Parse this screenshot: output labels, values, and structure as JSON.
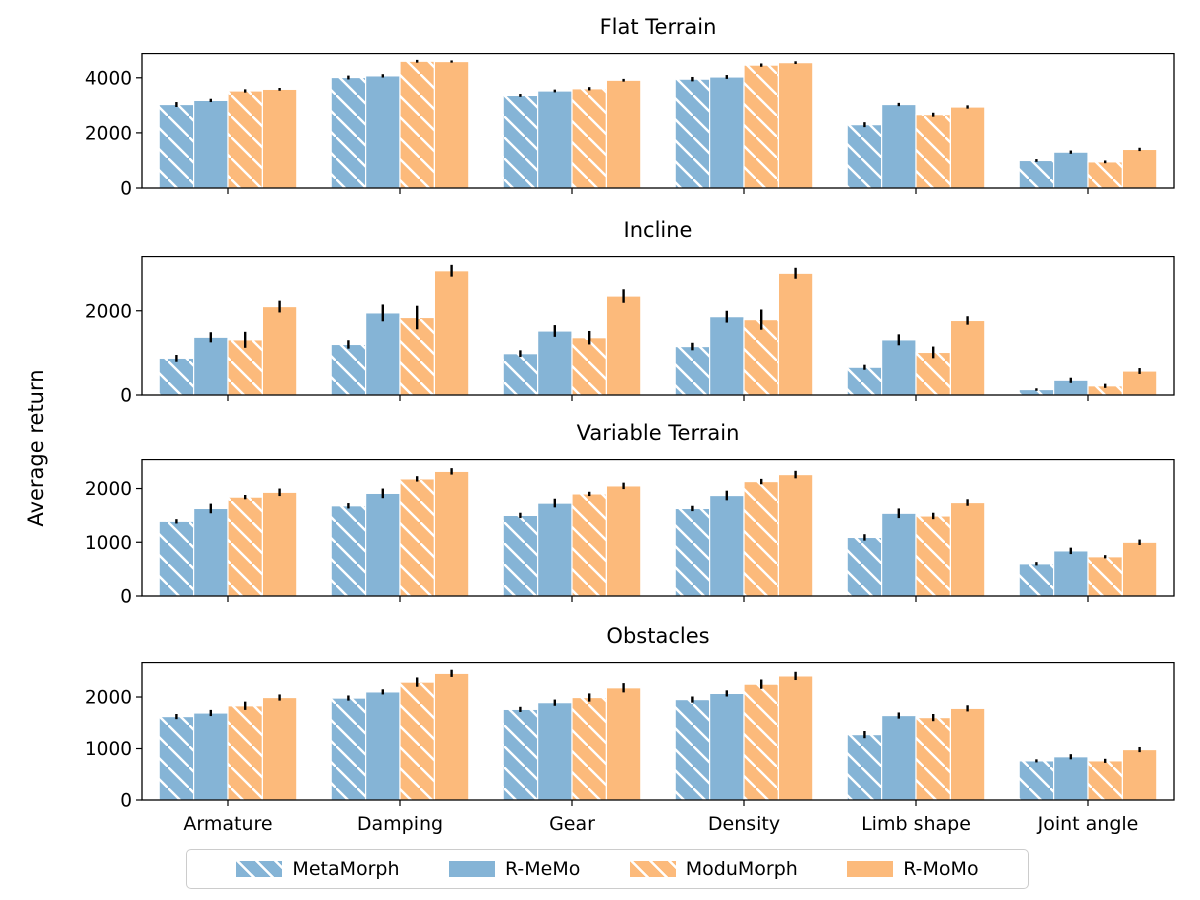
{
  "ylabel": "Average return",
  "legend": {
    "items": [
      {
        "label": "MetaMorph",
        "color": "#85b4d6",
        "hatch": true
      },
      {
        "label": "R-MeMo",
        "color": "#85b4d6",
        "hatch": false
      },
      {
        "label": "ModuMorph",
        "color": "#fcba7b",
        "hatch": true
      },
      {
        "label": "R-MoMo",
        "color": "#fcba7b",
        "hatch": false
      }
    ]
  },
  "chart_data": [
    {
      "type": "bar",
      "title": "Flat Terrain",
      "categories": [
        "Armature",
        "Damping",
        "Gear",
        "Density",
        "Limb shape",
        "Joint angle"
      ],
      "series": [
        {
          "name": "MetaMorph",
          "values": [
            3030,
            4010,
            3360,
            3950,
            2300,
            1000
          ],
          "errors": [
            90,
            70,
            50,
            80,
            90,
            50
          ]
        },
        {
          "name": "R-MeMo",
          "values": [
            3180,
            4070,
            3520,
            4030,
            3030,
            1300
          ],
          "errors": [
            60,
            60,
            50,
            70,
            60,
            60
          ]
        },
        {
          "name": "ModuMorph",
          "values": [
            3520,
            4600,
            3600,
            4460,
            2660,
            950
          ],
          "errors": [
            60,
            50,
            60,
            60,
            70,
            50
          ]
        },
        {
          "name": "R-MoMo",
          "values": [
            3580,
            4590,
            3910,
            4550,
            2940,
            1400
          ],
          "errors": [
            50,
            40,
            50,
            50,
            60,
            60
          ]
        }
      ],
      "ylim": [
        0,
        4900
      ],
      "yticks": [
        0,
        2000,
        4000
      ],
      "show_xticklabels": false,
      "grid": false
    },
    {
      "type": "bar",
      "title": "Incline",
      "categories": [
        "Armature",
        "Damping",
        "Gear",
        "Density",
        "Limb shape",
        "Joint angle"
      ],
      "series": [
        {
          "name": "MetaMorph",
          "values": [
            870,
            1200,
            980,
            1150,
            660,
            130
          ],
          "errors": [
            80,
            100,
            80,
            90,
            60,
            30
          ]
        },
        {
          "name": "R-MeMo",
          "values": [
            1370,
            1950,
            1520,
            1860,
            1310,
            350
          ],
          "errors": [
            120,
            200,
            140,
            140,
            130,
            60
          ]
        },
        {
          "name": "ModuMorph",
          "values": [
            1310,
            1840,
            1360,
            1790,
            1010,
            220
          ],
          "errors": [
            190,
            280,
            160,
            240,
            140,
            50
          ]
        },
        {
          "name": "R-MoMo",
          "values": [
            2100,
            2950,
            2350,
            2890,
            1770,
            570
          ],
          "errors": [
            140,
            140,
            160,
            130,
            100,
            70
          ]
        }
      ],
      "ylim": [
        0,
        3300
      ],
      "yticks": [
        0,
        2000
      ],
      "show_xticklabels": false,
      "grid": false
    },
    {
      "type": "bar",
      "title": "Variable Terrain",
      "categories": [
        "Armature",
        "Damping",
        "Gear",
        "Density",
        "Limb shape",
        "Joint angle"
      ],
      "series": [
        {
          "name": "MetaMorph",
          "values": [
            1390,
            1680,
            1500,
            1630,
            1090,
            600
          ],
          "errors": [
            40,
            50,
            50,
            50,
            60,
            30
          ]
        },
        {
          "name": "R-MeMo",
          "values": [
            1630,
            1910,
            1730,
            1870,
            1540,
            840
          ],
          "errors": [
            90,
            90,
            80,
            90,
            90,
            60
          ]
        },
        {
          "name": "ModuMorph",
          "values": [
            1840,
            2180,
            1900,
            2130,
            1490,
            730
          ],
          "errors": [
            40,
            50,
            40,
            50,
            60,
            30
          ]
        },
        {
          "name": "R-MoMo",
          "values": [
            1930,
            2320,
            2050,
            2260,
            1740,
            1000
          ],
          "errors": [
            70,
            60,
            60,
            70,
            60,
            50
          ]
        }
      ],
      "ylim": [
        0,
        2550
      ],
      "yticks": [
        0,
        1000,
        2000
      ],
      "show_xticklabels": false,
      "grid": false
    },
    {
      "type": "bar",
      "title": "Obstacles",
      "categories": [
        "Armature",
        "Damping",
        "Gear",
        "Density",
        "Limb shape",
        "Joint angle"
      ],
      "series": [
        {
          "name": "MetaMorph",
          "values": [
            1620,
            1980,
            1760,
            1950,
            1270,
            760
          ],
          "errors": [
            50,
            50,
            50,
            60,
            70,
            30
          ]
        },
        {
          "name": "R-MeMo",
          "values": [
            1690,
            2100,
            1890,
            2070,
            1640,
            840
          ],
          "errors": [
            60,
            50,
            60,
            60,
            60,
            50
          ]
        },
        {
          "name": "ModuMorph",
          "values": [
            1830,
            2290,
            1990,
            2250,
            1600,
            760
          ],
          "errors": [
            80,
            90,
            80,
            90,
            70,
            40
          ]
        },
        {
          "name": "R-MoMo",
          "values": [
            1990,
            2460,
            2180,
            2410,
            1780,
            980
          ],
          "errors": [
            60,
            70,
            90,
            80,
            60,
            50
          ]
        }
      ],
      "ylim": [
        0,
        2680
      ],
      "yticks": [
        0,
        1000,
        2000
      ],
      "show_xticklabels": true,
      "grid": false
    }
  ]
}
